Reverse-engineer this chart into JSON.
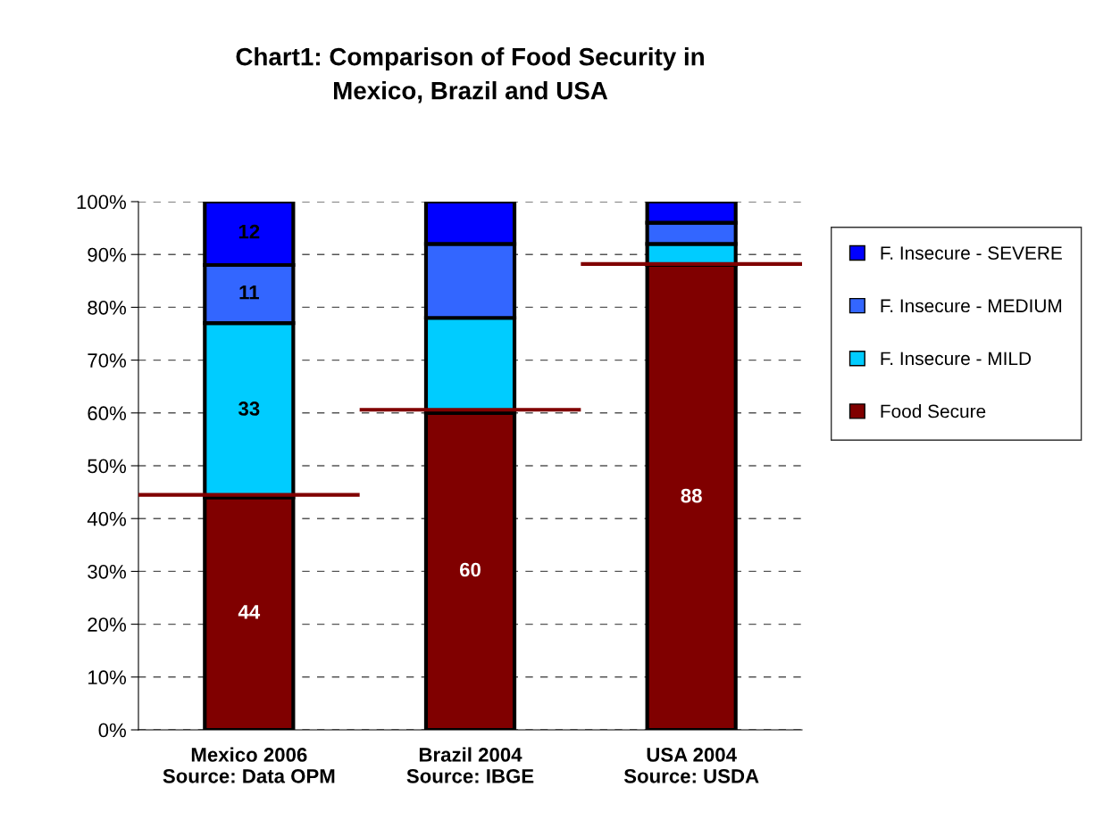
{
  "chart_data": {
    "type": "bar",
    "stacked": true,
    "title": "Chart1: Comparison of Food Security in\nMexico, Brazil and USA",
    "categories": [
      "Mexico 2006\nSource: Data OPM",
      "Brazil 2004\nSource: IBGE",
      "USA 2004\nSource: USDA"
    ],
    "series": [
      {
        "name": "Food Secure",
        "color": "#800000",
        "values": [
          44,
          60,
          88
        ],
        "value_labels": [
          "44",
          "60",
          "88"
        ]
      },
      {
        "name": "F. Insecure - MILD",
        "color": "#00ccff",
        "values": [
          33,
          18,
          4
        ],
        "value_labels": [
          "33",
          null,
          null
        ]
      },
      {
        "name": "F. Insecure - MEDIUM",
        "color": "#3366ff",
        "values": [
          11,
          14,
          4
        ],
        "value_labels": [
          "11",
          null,
          null
        ]
      },
      {
        "name": "F. Insecure - SEVERE",
        "color": "#0000ff",
        "values": [
          12,
          8,
          4
        ],
        "value_labels": [
          "12",
          null,
          null
        ]
      }
    ],
    "ref_lines": [
      {
        "axis": "y",
        "value": 44.5,
        "color": "#800000"
      },
      {
        "axis": "y",
        "value": 60.6,
        "color": "#800000"
      },
      {
        "axis": "y",
        "value": 88.2,
        "color": "#800000"
      }
    ],
    "ylim": [
      0,
      100
    ],
    "yticks": [
      {
        "value": 0,
        "label": "0%"
      },
      {
        "value": 10,
        "label": "10%"
      },
      {
        "value": 20,
        "label": "20%"
      },
      {
        "value": 30,
        "label": "30%"
      },
      {
        "value": 40,
        "label": "40%"
      },
      {
        "value": 50,
        "label": "50%"
      },
      {
        "value": 60,
        "label": "60%"
      },
      {
        "value": 70,
        "label": "70%"
      },
      {
        "value": 80,
        "label": "80%"
      },
      {
        "value": 90,
        "label": "90%"
      },
      {
        "value": 100,
        "label": "100%"
      }
    ],
    "grid": "y",
    "legend": "right"
  }
}
